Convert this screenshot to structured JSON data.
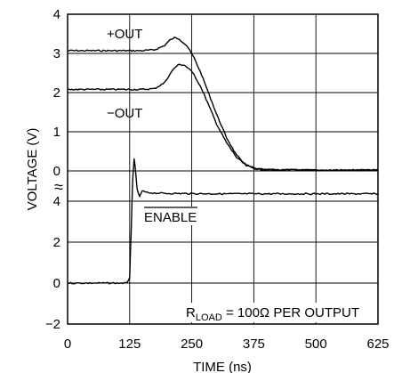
{
  "chart_data": {
    "type": "line",
    "title": "",
    "xlabel": "TIME (ns)",
    "ylabel": "VOLTAGE (V)",
    "xlim": [
      0,
      625
    ],
    "x_ticks": [
      "0",
      "125",
      "250",
      "375",
      "500",
      "625"
    ],
    "y_ticks_upper": [
      "4",
      "3",
      "2",
      "1",
      "0"
    ],
    "y_ticks_lower": [
      "4",
      "2",
      "0",
      "−2"
    ],
    "axis_break": "≈",
    "grid": true,
    "annotations": {
      "out_plus": "+OUT",
      "out_minus": "−OUT",
      "enable": "ENABLE",
      "rload_prefix": "R",
      "rload_sub": "LOAD",
      "rload_suffix": " = 100Ω PER OUTPUT"
    },
    "series": [
      {
        "name": "+OUT",
        "upper_axis": true,
        "x": [
          0,
          150,
          175,
          195,
          205,
          215,
          225,
          240,
          255,
          270,
          285,
          300,
          320,
          340,
          360,
          380,
          400,
          500,
          625
        ],
        "y": [
          3.07,
          3.07,
          3.09,
          3.2,
          3.33,
          3.4,
          3.37,
          3.2,
          2.88,
          2.45,
          1.95,
          1.45,
          0.85,
          0.4,
          0.15,
          0.05,
          0.03,
          0.02,
          0.02
        ]
      },
      {
        "name": "−OUT",
        "upper_axis": true,
        "x": [
          0,
          150,
          175,
          195,
          205,
          215,
          225,
          235,
          245,
          255,
          270,
          285,
          300,
          320,
          340,
          360,
          380,
          400,
          500,
          625
        ],
        "y": [
          2.08,
          2.08,
          2.1,
          2.25,
          2.45,
          2.63,
          2.72,
          2.7,
          2.6,
          2.45,
          2.1,
          1.65,
          1.2,
          0.72,
          0.35,
          0.13,
          0.05,
          0.03,
          0.02,
          0.02
        ]
      },
      {
        "name": "ENABLE",
        "upper_axis": false,
        "x": [
          0,
          120,
          125,
          128,
          131,
          134,
          137,
          140,
          145,
          150,
          160,
          175,
          200,
          300,
          400,
          500,
          625
        ],
        "y": [
          0,
          0,
          0.3,
          2.5,
          5.0,
          6.1,
          5.4,
          4.6,
          4.2,
          4.5,
          4.42,
          4.4,
          4.38,
          4.36,
          4.36,
          4.36,
          4.36
        ]
      }
    ]
  }
}
